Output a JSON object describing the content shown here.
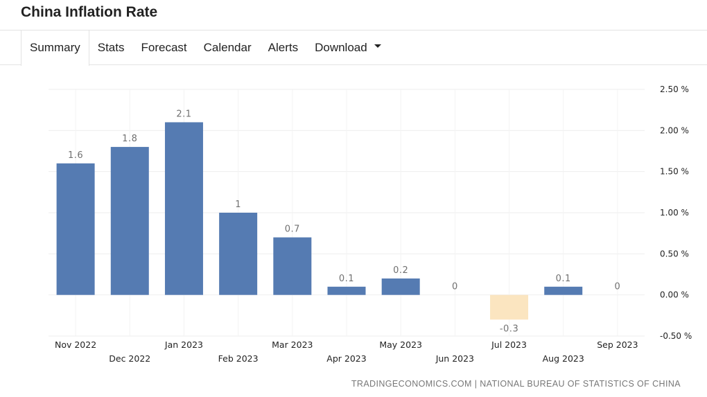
{
  "header": {
    "title": "China Inflation Rate"
  },
  "tabs": [
    {
      "label": "Summary",
      "active": true
    },
    {
      "label": "Stats"
    },
    {
      "label": "Forecast"
    },
    {
      "label": "Calendar"
    },
    {
      "label": "Alerts"
    },
    {
      "label": "Download",
      "has_dropdown": true,
      "icon": "caret-down-icon"
    }
  ],
  "footer": {
    "source": "TRADINGECONOMICS.COM | NATIONAL BUREAU OF STATISTICS OF CHINA"
  },
  "chart_data": {
    "type": "bar",
    "categories": [
      "Nov 2022",
      "Dec 2022",
      "Jan 2023",
      "Feb 2023",
      "Mar 2023",
      "Apr 2023",
      "May 2023",
      "Jun 2023",
      "Jul 2023",
      "Aug 2023",
      "Sep 2023"
    ],
    "values": [
      1.6,
      1.8,
      2.1,
      1,
      0.7,
      0.1,
      0.2,
      0,
      -0.3,
      0.1,
      0
    ],
    "data_labels": [
      "1.6",
      "1.8",
      "2.1",
      "1",
      "0.7",
      "0.1",
      "0.2",
      "0",
      "-0.3",
      "0.1",
      "0"
    ],
    "y_ticks": [
      2.5,
      2.0,
      1.5,
      1.0,
      0.5,
      0.0,
      -0.5
    ],
    "y_tick_labels": [
      "2.50 %",
      "2.00 %",
      "1.50 %",
      "1.00 %",
      "0.50 %",
      "0.00 %",
      "-0.50 %"
    ],
    "ylim": [
      -0.5,
      2.5
    ],
    "y_axis_side": "right",
    "grid": true,
    "colors": {
      "positive": "#557bb2",
      "negative": "#fbe5c0",
      "grid": "#eeeeee",
      "label": "#707070",
      "tick": "#222222"
    },
    "title": "",
    "xlabel": "",
    "ylabel": ""
  }
}
